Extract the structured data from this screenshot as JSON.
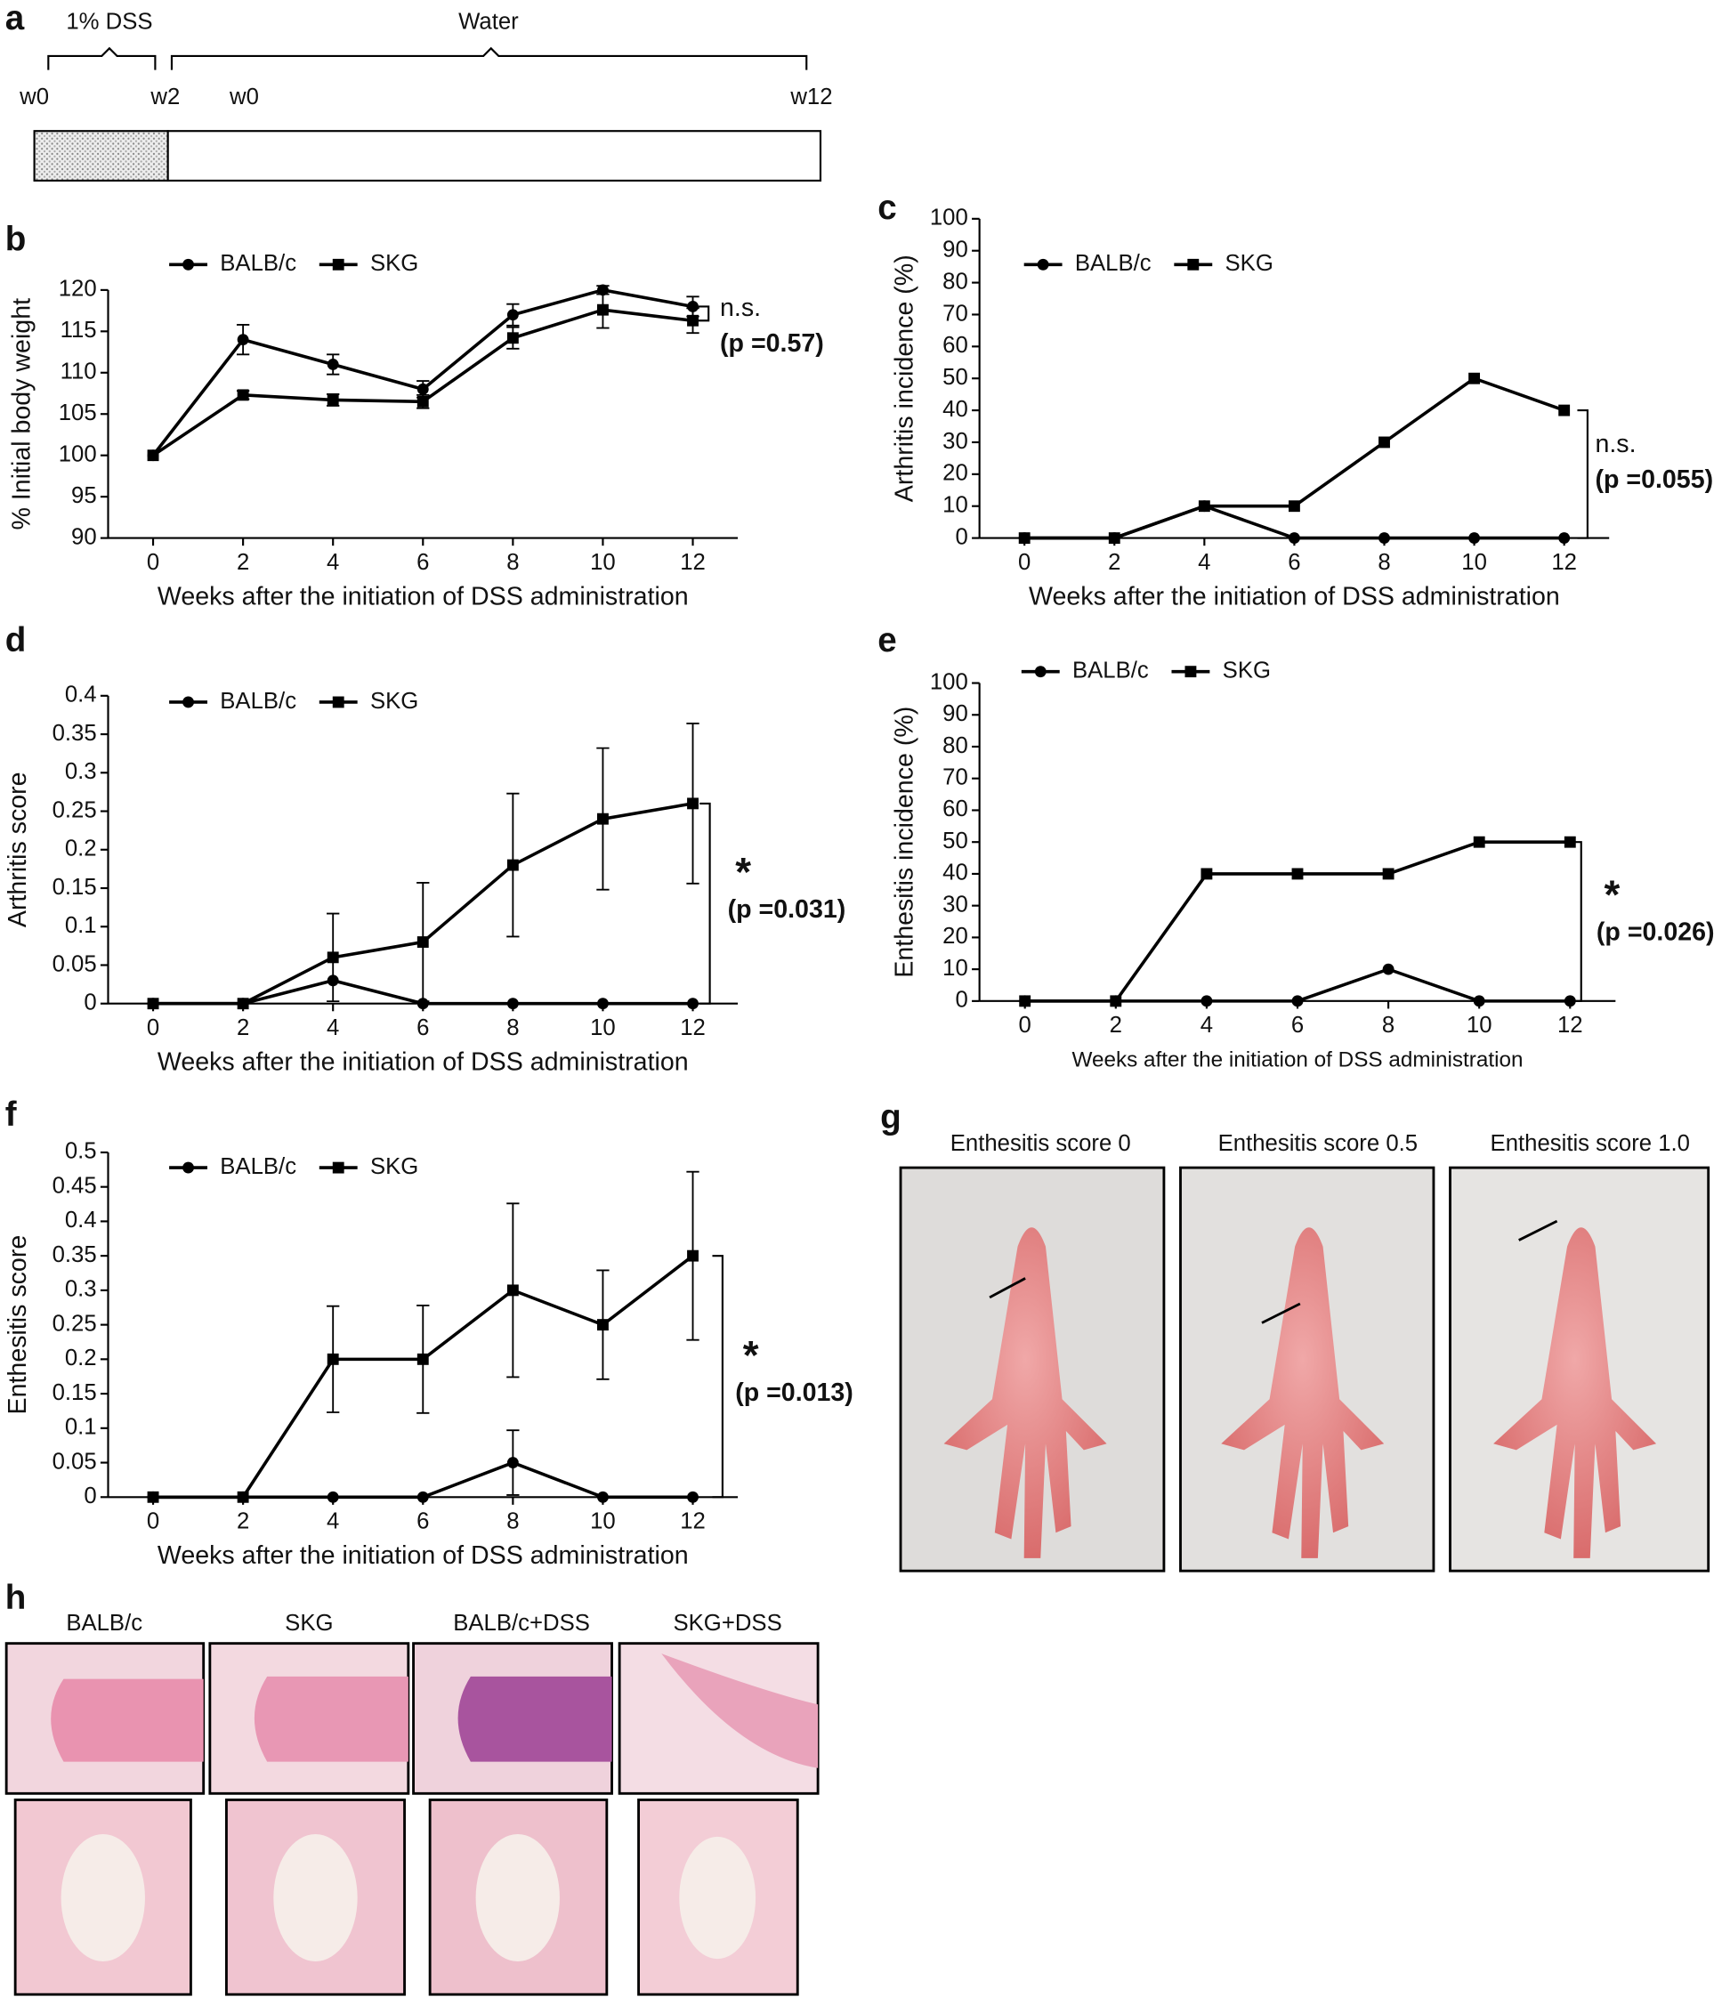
{
  "timeline": {
    "panel": "a",
    "phases": [
      "1% DSS",
      "Water"
    ],
    "week_labels": [
      "w0",
      "w2",
      "w0",
      "w12"
    ]
  },
  "chart_data": [
    {
      "type": "line",
      "panel": "b",
      "y_label": "% Initial body weight",
      "x_label": "Weeks after the initiation of DSS administration",
      "x": [
        0,
        2,
        4,
        6,
        8,
        10,
        12
      ],
      "xlim": [
        -1,
        13
      ],
      "xticks": [
        0,
        2,
        4,
        6,
        8,
        10,
        12
      ],
      "ylim": [
        90,
        120
      ],
      "yticks": [
        90,
        95,
        100,
        105,
        110,
        115,
        120
      ],
      "annotations": [
        "n.s.",
        "(p =0.57)"
      ],
      "series": [
        {
          "name": "BALB/c",
          "marker": "circle",
          "color": "#000000",
          "values": [
            100,
            114,
            111,
            108,
            117,
            120,
            118
          ],
          "error": [
            0,
            1.8,
            1.2,
            1,
            1.3,
            0.5,
            1.2
          ]
        },
        {
          "name": "SKG",
          "marker": "square",
          "color": "#000000",
          "values": [
            100,
            107.3,
            106.7,
            106.5,
            114.2,
            117.6,
            116.3
          ],
          "error": [
            0,
            0.5,
            0.7,
            0.8,
            1.3,
            2.2,
            1.5
          ]
        }
      ]
    },
    {
      "type": "line",
      "panel": "c",
      "y_label": "Arthritis incidence (%)",
      "x_label": "Weeks after the initiation of DSS administration",
      "x": [
        0,
        2,
        4,
        6,
        8,
        10,
        12
      ],
      "xlim": [
        -1,
        13
      ],
      "xticks": [
        0,
        2,
        4,
        6,
        8,
        10,
        12
      ],
      "ylim": [
        0,
        100
      ],
      "yticks": [
        0,
        10,
        20,
        30,
        40,
        50,
        60,
        70,
        80,
        90,
        100
      ],
      "annotations": [
        "n.s.",
        "(p =0.055)"
      ],
      "series": [
        {
          "name": "BALB/c",
          "marker": "circle",
          "color": "#000000",
          "values": [
            0,
            0,
            10,
            0,
            0,
            0,
            0
          ]
        },
        {
          "name": "SKG",
          "marker": "square",
          "color": "#000000",
          "values": [
            0,
            0,
            10,
            10,
            30,
            50,
            40
          ]
        }
      ]
    },
    {
      "type": "line",
      "panel": "d",
      "y_label": "Arthritis score",
      "x_label": "Weeks after the initiation of DSS administration",
      "x": [
        0,
        2,
        4,
        6,
        8,
        10,
        12
      ],
      "xlim": [
        -1,
        13
      ],
      "xticks": [
        0,
        2,
        4,
        6,
        8,
        10,
        12
      ],
      "ylim": [
        0,
        0.4
      ],
      "yticks": [
        0,
        0.05,
        0.1,
        0.15,
        0.2,
        0.25,
        0.3,
        0.35,
        0.4
      ],
      "annotations": [
        "*",
        "(p =0.031)"
      ],
      "series": [
        {
          "name": "BALB/c",
          "marker": "circle",
          "color": "#000000",
          "values": [
            0,
            0,
            0.03,
            0,
            0,
            0,
            0
          ]
        },
        {
          "name": "SKG",
          "marker": "square",
          "color": "#000000",
          "values": [
            0,
            0,
            0.06,
            0.08,
            0.18,
            0.24,
            0.26
          ],
          "error": [
            0,
            0,
            0.057,
            0.077,
            0.093,
            0.092,
            0.104
          ]
        }
      ]
    },
    {
      "type": "line",
      "panel": "e",
      "y_label": "Enthesitis incidence (%)",
      "x_label": "Weeks after the initiation of DSS administration",
      "x": [
        0,
        2,
        4,
        6,
        8,
        10,
        12
      ],
      "xlim": [
        -1,
        13
      ],
      "xticks": [
        0,
        2,
        4,
        6,
        8,
        10,
        12
      ],
      "ylim": [
        0,
        100
      ],
      "yticks": [
        0,
        10,
        20,
        30,
        40,
        50,
        60,
        70,
        80,
        90,
        100
      ],
      "annotations": [
        "*",
        "(p =0.026)"
      ],
      "series": [
        {
          "name": "BALB/c",
          "marker": "circle",
          "color": "#000000",
          "values": [
            0,
            0,
            0,
            0,
            10,
            0,
            0
          ]
        },
        {
          "name": "SKG",
          "marker": "square",
          "color": "#000000",
          "values": [
            0,
            0,
            40,
            40,
            40,
            50,
            50
          ]
        }
      ]
    },
    {
      "type": "line",
      "panel": "f",
      "y_label": "Enthesitis score",
      "x_label": "Weeks after the initiation of DSS administration",
      "x": [
        0,
        2,
        4,
        6,
        8,
        10,
        12
      ],
      "xlim": [
        -1,
        13
      ],
      "xticks": [
        0,
        2,
        4,
        6,
        8,
        10,
        12
      ],
      "ylim": [
        0,
        0.5
      ],
      "yticks": [
        0,
        0.05,
        0.1,
        0.15,
        0.2,
        0.25,
        0.3,
        0.35,
        0.4,
        0.45,
        0.5
      ],
      "annotations": [
        "*",
        "(p =0.013)"
      ],
      "series": [
        {
          "name": "BALB/c",
          "marker": "circle",
          "color": "#000000",
          "values": [
            0,
            0,
            0,
            0,
            0.05,
            0,
            0
          ],
          "error": [
            0,
            0,
            0,
            0,
            0.047,
            0,
            0
          ]
        },
        {
          "name": "SKG",
          "marker": "square",
          "color": "#000000",
          "values": [
            0,
            0,
            0.2,
            0.2,
            0.3,
            0.25,
            0.35
          ],
          "error": [
            0,
            0,
            0.077,
            0.078,
            0.126,
            0.079,
            0.122
          ]
        }
      ]
    }
  ],
  "photos": {
    "panel": "g",
    "captions": [
      "Enthesitis score 0",
      "Enthesitis score 0.5",
      "Enthesitis score 1.0"
    ]
  },
  "histology": {
    "panel": "h",
    "groups": [
      "BALB/c",
      "SKG",
      "BALB/c+DSS",
      "SKG+DSS"
    ]
  }
}
